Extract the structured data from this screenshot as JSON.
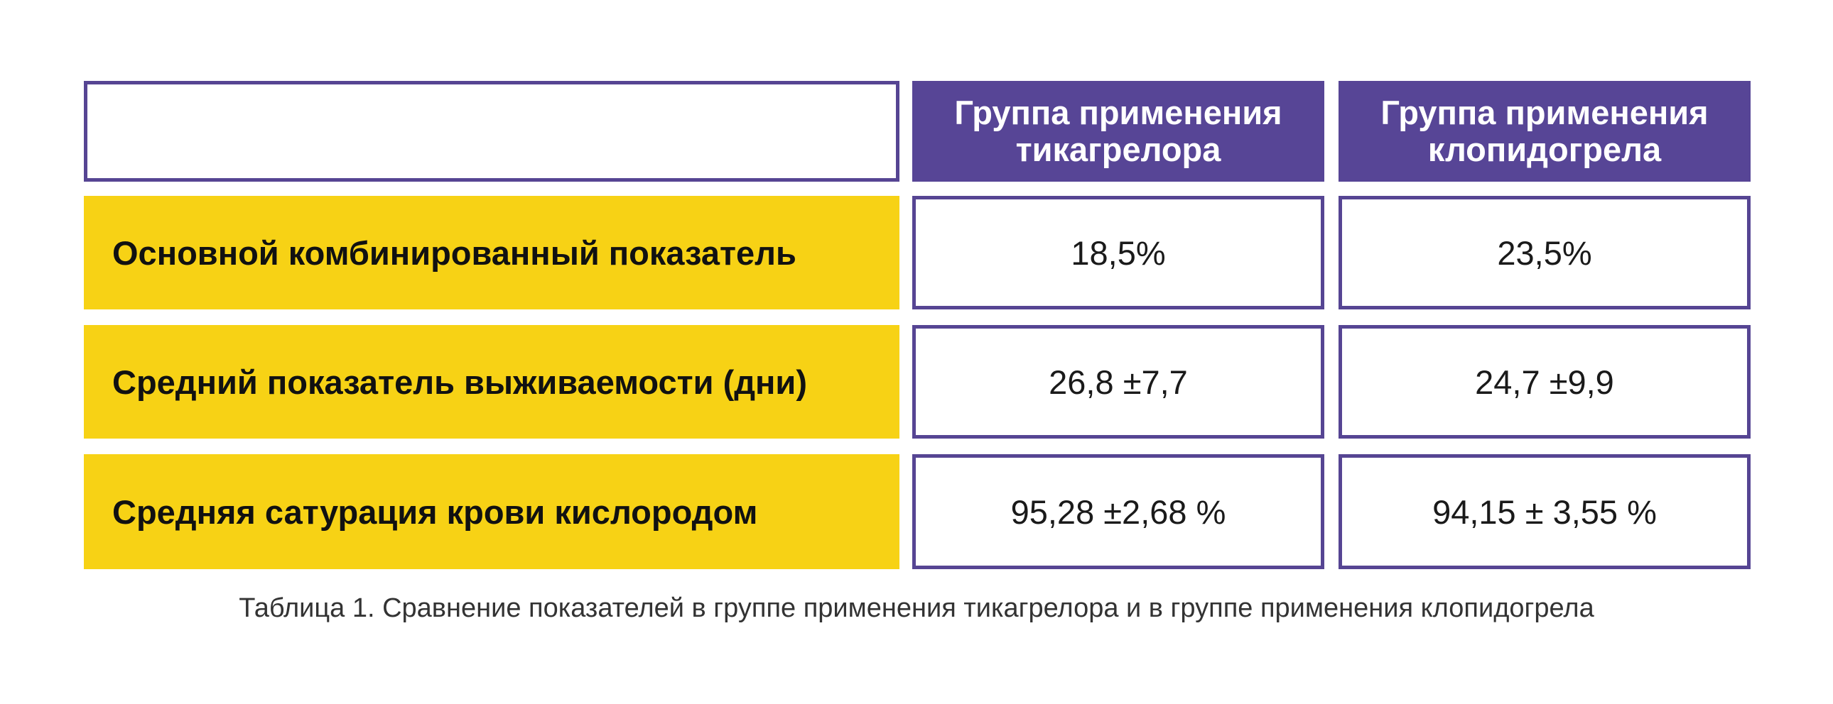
{
  "table": {
    "header": {
      "col1": "Группа применения тикагрелора",
      "col2": "Группа применения клопидогрела"
    },
    "rows": [
      {
        "label": "Основной комбинированный показатель",
        "col1": "18,5%",
        "col2": "23,5%"
      },
      {
        "label": "Средний показатель выживаемости (дни)",
        "col1": "26,8 ±7,7",
        "col2": "24,7 ±9,9"
      },
      {
        "label": "Средняя сатурация крови кислородом",
        "col1": "95,28 ±2,68 %",
        "col2": "94,15 ± 3,55 %"
      }
    ]
  },
  "caption": "Таблица 1. Сравнение показателей в группе применения тикагрелора и в группе применения клопидогрела",
  "colors": {
    "header_bg": "#574596",
    "label_bg": "#f7d215",
    "border": "#564593"
  }
}
